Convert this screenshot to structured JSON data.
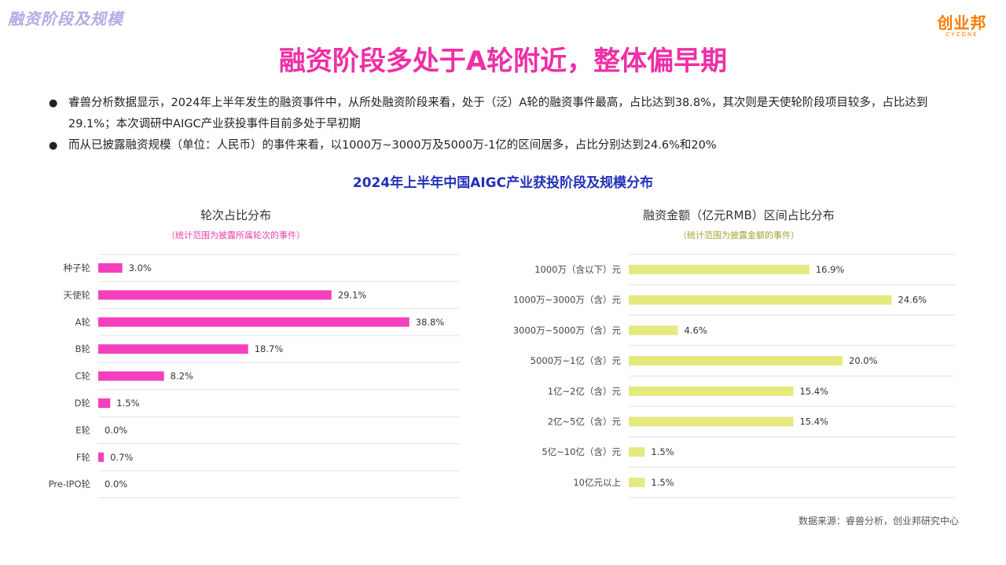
{
  "header": {
    "section_tag": "融资阶段及规模",
    "logo_main": "创业邦",
    "logo_sub": "CYZONE",
    "title": "融资阶段多处于A轮附近，整体偏早期"
  },
  "bullets": [
    "睿兽分析数据显示，2024年上半年发生的融资事件中，从所处融资阶段来看，处于（泛）A轮的融资事件最高，占比达到38.8%，其次则是天使轮阶段项目较多，占比达到29.1%；本次调研中AIGC产业获投事件目前多处于早初期",
    "而从已披露融资规模（单位：人民币）的事件来看，以1000万~3000万及5000万-1亿的区间居多，占比分别达到24.6%和20%"
  ],
  "subtitle": "2024年上半年中国AIGC产业获投阶段及规模分布",
  "source": "数据来源：睿兽分析，创业邦研究中心",
  "colors": {
    "left_bar": "#f43fbf",
    "right_bar": "#e4ea7e",
    "left_note": "#e83fb0",
    "right_note": "#a3a33a"
  },
  "chart_data": [
    {
      "type": "bar",
      "orientation": "horizontal",
      "title": "轮次占比分布",
      "note": "（统计范围为披露所属轮次的事件）",
      "categories": [
        "种子轮",
        "天使轮",
        "A轮",
        "B轮",
        "C轮",
        "D轮",
        "E轮",
        "F轮",
        "Pre-IPO轮"
      ],
      "values": [
        3.0,
        29.1,
        38.8,
        18.7,
        8.2,
        1.5,
        0.0,
        0.7,
        0.0
      ],
      "labels": [
        "3.0%",
        "29.1%",
        "38.8%",
        "18.7%",
        "8.2%",
        "1.5%",
        "0.0%",
        "0.7%",
        "0.0%"
      ],
      "unit": "%"
    },
    {
      "type": "bar",
      "orientation": "horizontal",
      "title": "融资金额（亿元RMB）区间占比分布",
      "note": "（统计范围为披露金额的事件）",
      "categories": [
        "1000万（含以下）元",
        "1000万~3000万（含）元",
        "3000万~5000万（含）元",
        "5000万~1亿（含）元",
        "1亿~2亿（含）元",
        "2亿~5亿（含）元",
        "5亿~10亿（含）元",
        "10亿元以上"
      ],
      "values": [
        16.9,
        24.6,
        4.6,
        20.0,
        15.4,
        15.4,
        1.5,
        1.5
      ],
      "labels": [
        "16.9%",
        "24.6%",
        "4.6%",
        "20.0%",
        "15.4%",
        "15.4%",
        "1.5%",
        "1.5%"
      ],
      "unit": "%"
    }
  ]
}
